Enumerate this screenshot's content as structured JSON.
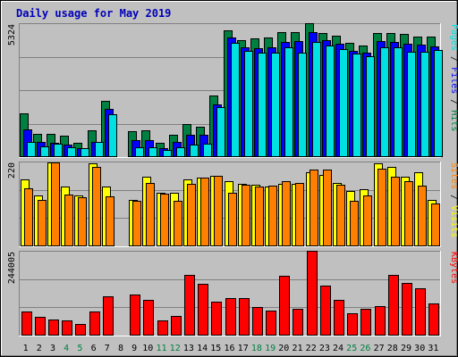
{
  "chart_data": {
    "type": "bar",
    "title": "Daily usage for May 2019",
    "categories": [
      "1",
      "2",
      "3",
      "4",
      "5",
      "6",
      "7",
      "8",
      "9",
      "10",
      "11",
      "12",
      "13",
      "14",
      "15",
      "16",
      "17",
      "18",
      "19",
      "20",
      "21",
      "22",
      "23",
      "24",
      "25",
      "26",
      "27",
      "28",
      "29",
      "30",
      "31"
    ],
    "weekend_days": [
      "4",
      "5",
      "11",
      "12",
      "18",
      "19",
      "25",
      "26"
    ],
    "panels": [
      {
        "id": "hits",
        "ymax": 5324,
        "ymax_label": "5324",
        "legend": [
          {
            "text": "Pages",
            "color": "#00e0e0"
          },
          {
            "text": " / ",
            "color": "#000000"
          },
          {
            "text": "Files",
            "color": "#0000ff"
          },
          {
            "text": " / ",
            "color": "#000000"
          },
          {
            "text": "Hits",
            "color": "#008040"
          }
        ],
        "series": [
          {
            "name": "Hits",
            "color": "#008040",
            "values": [
              1730,
              920,
              920,
              840,
              580,
              1050,
              2250,
              0,
              1030,
              1080,
              580,
              880,
              1310,
              1220,
              2460,
              5050,
              4650,
              4730,
              4750,
              4970,
              4980,
              5320,
              4950,
              4830,
              4550,
              4440,
              4920,
              4920,
              4900,
              4800,
              4800
            ]
          },
          {
            "name": "Files",
            "color": "#0000ff",
            "values": [
              1100,
              600,
              580,
              480,
              350,
              600,
              1900,
              0,
              670,
              670,
              370,
              600,
              880,
              890,
              2100,
              4750,
              4360,
              4320,
              4370,
              4570,
              4620,
              4980,
              4650,
              4520,
              4220,
              4150,
              4610,
              4580,
              4520,
              4460,
              4390
            ]
          },
          {
            "name": "Pages",
            "color": "#00e0e0",
            "values": [
              600,
              420,
              520,
              400,
              370,
              620,
              1700,
              0,
              390,
              400,
              300,
              400,
              480,
              520,
              2000,
              4530,
              4210,
              4150,
              4150,
              4370,
              4140,
              4570,
              4430,
              4290,
              4120,
              4020,
              4370,
              4360,
              4190,
              4190,
              4260
            ]
          }
        ]
      },
      {
        "id": "visits",
        "ymax": 220,
        "ymax_label": "220",
        "legend": [
          {
            "text": "Sites",
            "color": "#ff8000"
          },
          {
            "text": " / ",
            "color": "#000000"
          },
          {
            "text": "Visits",
            "color": "#ffff00"
          }
        ],
        "series": [
          {
            "name": "Visits",
            "color": "#ffff00",
            "values": [
              173,
              133,
              218,
              155,
              132,
              215,
              155,
              0,
              120,
              180,
              140,
              138,
              173,
              178,
              183,
              170,
              163,
              160,
              156,
              163,
              162,
              192,
              186,
              165,
              143,
              148,
              215,
              205,
              180,
              192,
              120
            ]
          },
          {
            "name": "Sites",
            "color": "#ff8000",
            "values": [
              151,
              121,
              217,
              135,
              128,
              205,
              130,
              0,
              118,
              165,
              137,
              117,
              163,
              178,
              183,
              138,
              160,
              155,
              157,
              168,
              165,
              200,
              199,
              160,
              119,
              133,
              202,
              180,
              168,
              158,
              110
            ]
          }
        ]
      },
      {
        "id": "kbytes",
        "ymax": 244005,
        "ymax_label": "244005",
        "legend": [
          {
            "text": "KBytes",
            "color": "#ff0000"
          }
        ],
        "series": [
          {
            "name": "KBytes",
            "color": "#ff0000",
            "values": [
              70000,
              55000,
              46000,
              44000,
              34000,
              70000,
              112000,
              0,
              118000,
              103000,
              43000,
              56000,
              174000,
              148000,
              98000,
              107000,
              107000,
              82000,
              71000,
              172000,
              78000,
              243000,
              145000,
              102000,
              65000,
              76000,
              85000,
              174000,
              152000,
              136000,
              92000
            ]
          }
        ]
      }
    ]
  }
}
